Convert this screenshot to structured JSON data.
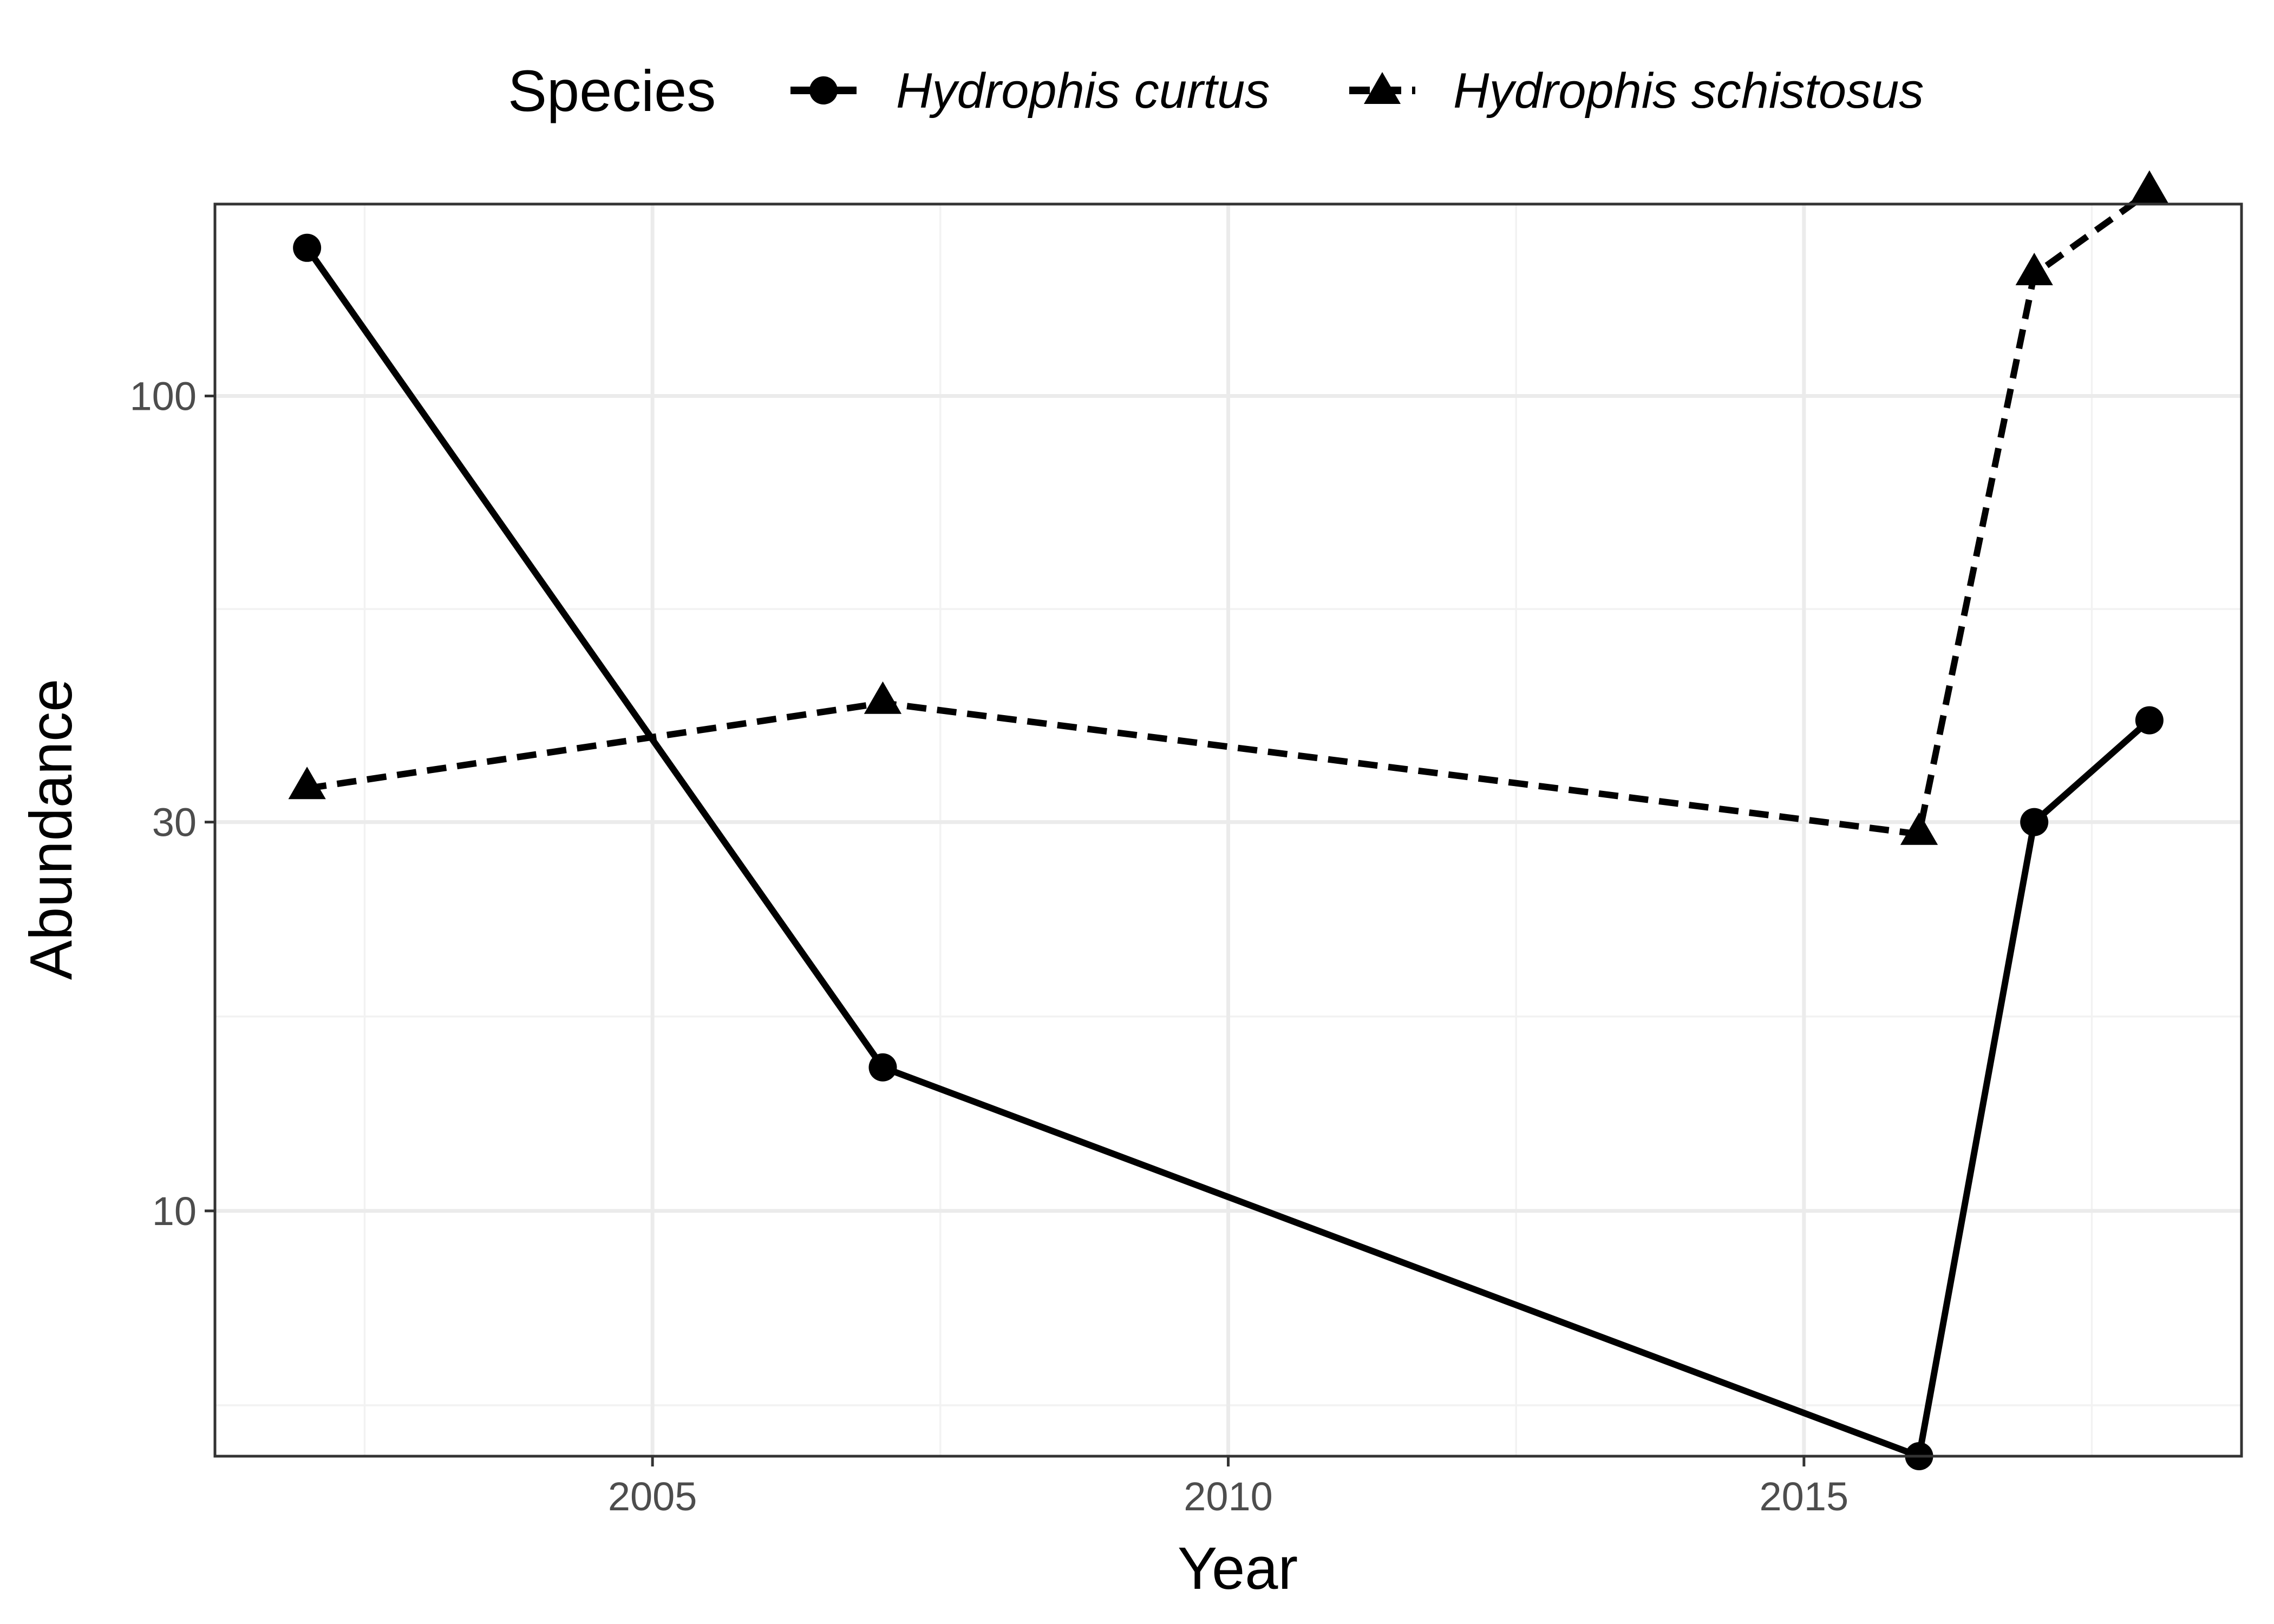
{
  "chart_data": {
    "type": "line",
    "xlabel": "Year",
    "ylabel": "Abundance",
    "y_scale": "log10",
    "xlim": [
      2001.2,
      2018.8
    ],
    "ylim": [
      5,
      172
    ],
    "x_ticks": [
      2005,
      2010,
      2015
    ],
    "x_tick_labels": [
      "2005",
      "2010",
      "2015"
    ],
    "y_ticks": [
      10,
      30,
      100
    ],
    "y_tick_labels": [
      "10",
      "30",
      "100"
    ],
    "grid": true,
    "legend": {
      "title": "Species",
      "position": "top"
    },
    "series": [
      {
        "name": "Hydrophis curtus",
        "marker": "circle",
        "line_style": "solid",
        "color": "#000000",
        "x": [
          2002,
          2007,
          2016,
          2017,
          2018
        ],
        "y": [
          152,
          15,
          5,
          30,
          40
        ]
      },
      {
        "name": "Hydrophis schistosus",
        "marker": "triangle",
        "line_style": "dashed",
        "color": "#000000",
        "x": [
          2002,
          2007,
          2016,
          2017,
          2018
        ],
        "y": [
          33,
          42,
          29,
          141,
          178
        ]
      }
    ]
  }
}
